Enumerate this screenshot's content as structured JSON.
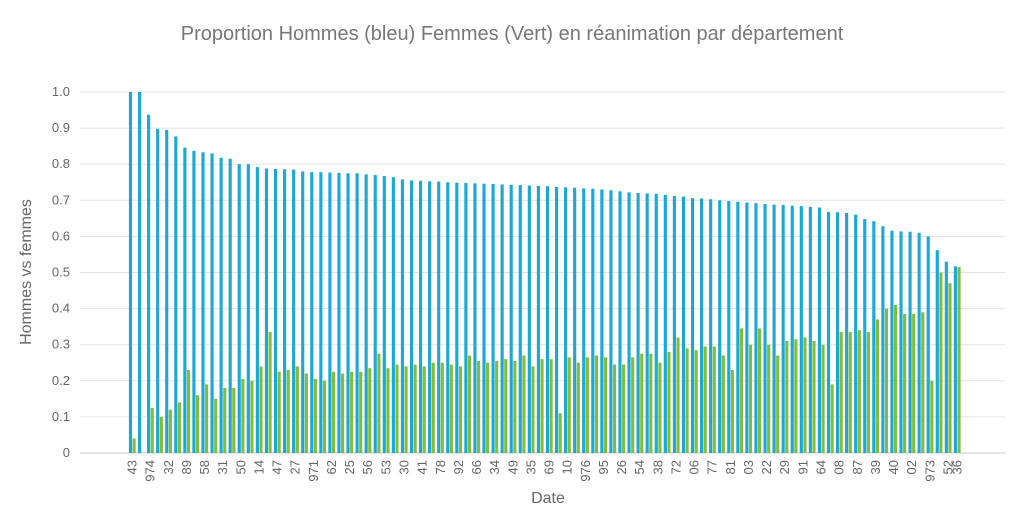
{
  "chart_data": {
    "type": "bar",
    "title": "Proportion  Hommes (bleu) Femmes (Vert) en réanimation par département",
    "y_label": "Hommes vs femmes",
    "x_label": "Date",
    "categories": [
      "43",
      null,
      "974",
      null,
      "32",
      null,
      "89",
      null,
      "58",
      null,
      "31",
      null,
      "50",
      null,
      "14",
      null,
      "47",
      null,
      "27",
      null,
      "971",
      null,
      "62",
      null,
      "25",
      null,
      "56",
      null,
      "53",
      null,
      "30",
      null,
      "41",
      null,
      "78",
      null,
      "92",
      null,
      "66",
      null,
      "34",
      null,
      "49",
      null,
      "35",
      null,
      "69",
      null,
      "10",
      null,
      "976",
      null,
      "95",
      null,
      "26",
      null,
      "54",
      null,
      "38",
      null,
      "72",
      null,
      "06",
      null,
      "77",
      null,
      "81",
      null,
      "03",
      null,
      "22",
      null,
      "29",
      null,
      "91",
      null,
      "64",
      null,
      "08",
      null,
      "87",
      null,
      "39",
      null,
      "40",
      null,
      "02",
      null,
      "973",
      null,
      "52",
      "36"
    ],
    "series": [
      {
        "color": "#1ba8d6",
        "values": [
          1.0,
          1.0,
          0.937,
          0.898,
          0.895,
          0.877,
          0.846,
          0.837,
          0.833,
          0.83,
          0.818,
          0.815,
          0.8,
          0.8,
          0.792,
          0.788,
          0.787,
          0.786,
          0.785,
          0.78,
          0.778,
          0.778,
          0.777,
          0.776,
          0.775,
          0.775,
          0.772,
          0.77,
          0.767,
          0.764,
          0.758,
          0.755,
          0.754,
          0.753,
          0.752,
          0.75,
          0.749,
          0.748,
          0.747,
          0.746,
          0.745,
          0.744,
          0.743,
          0.742,
          0.741,
          0.74,
          0.739,
          0.737,
          0.736,
          0.735,
          0.733,
          0.732,
          0.73,
          0.728,
          0.725,
          0.722,
          0.72,
          0.719,
          0.718,
          0.715,
          0.712,
          0.71,
          0.706,
          0.705,
          0.703,
          0.7,
          0.698,
          0.696,
          0.694,
          0.692,
          0.69,
          0.688,
          0.687,
          0.685,
          0.684,
          0.682,
          0.68,
          0.668,
          0.667,
          0.665,
          0.66,
          0.648,
          0.642,
          0.628,
          0.616,
          0.614,
          0.613,
          0.61,
          0.6,
          0.562,
          0.53,
          0.517
        ]
      },
      {
        "color": "#7dbe3c",
        "values": [
          0.04,
          0,
          0.125,
          0.1,
          0.12,
          0.14,
          0.23,
          0.16,
          0.19,
          0.15,
          0.18,
          0.18,
          0.205,
          0.2,
          0.24,
          0.335,
          0.225,
          0.23,
          0.24,
          0.22,
          0.205,
          0.2,
          0.225,
          0.22,
          0.225,
          0.225,
          0.235,
          0.275,
          0.235,
          0.245,
          0.24,
          0.245,
          0.24,
          0.25,
          0.25,
          0.245,
          0.24,
          0.27,
          0.255,
          0.25,
          0.255,
          0.26,
          0.255,
          0.27,
          0.24,
          0.26,
          0.26,
          0.11,
          0.265,
          0.25,
          0.265,
          0.27,
          0.265,
          0.245,
          0.245,
          0.265,
          0.275,
          0.275,
          0.25,
          0.28,
          0.32,
          0.29,
          0.285,
          0.295,
          0.295,
          0.27,
          0.23,
          0.345,
          0.3,
          0.345,
          0.3,
          0.27,
          0.31,
          0.315,
          0.32,
          0.31,
          0.3,
          0.19,
          0.335,
          0.335,
          0.34,
          0.335,
          0.37,
          0.4,
          0.41,
          0.385,
          0.385,
          0.39,
          0.2,
          0.5,
          0.47,
          0.515
        ]
      }
    ],
    "ylim": [
      0,
      1
    ],
    "yticks": [
      0,
      0.1,
      0.2,
      0.3,
      0.4,
      0.5,
      0.6,
      0.7,
      0.8,
      0.9,
      {
        "value": 1,
        "label": "1.0"
      }
    ],
    "grid": true
  }
}
